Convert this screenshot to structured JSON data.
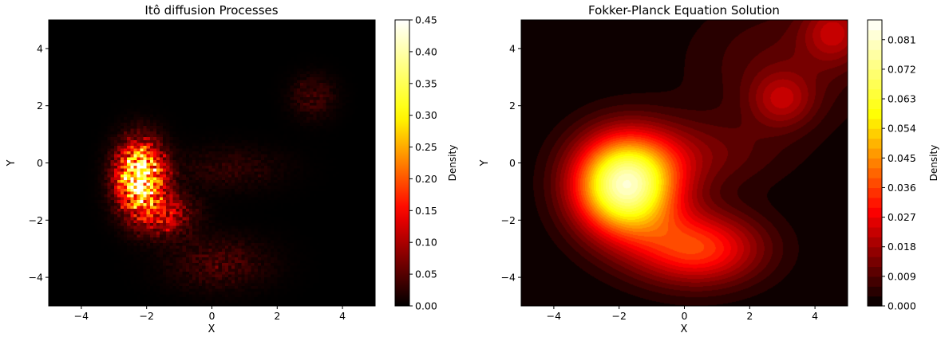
{
  "colors": {
    "colormap": "hot",
    "stops": [
      "#000000",
      "#ff0000",
      "#ffff00",
      "#ffffff"
    ]
  },
  "chart_data": [
    {
      "type": "heatmap",
      "style": "histogram2d",
      "title": "Itô diffusion Processes",
      "xlabel": "X",
      "ylabel": "Y",
      "xlim": [
        -5,
        5
      ],
      "ylim": [
        -5,
        5
      ],
      "xticks": [
        -4,
        -2,
        0,
        2,
        4
      ],
      "yticks": [
        -4,
        -2,
        0,
        2,
        4
      ],
      "xtick_labels": [
        "−4",
        "−2",
        "0",
        "2",
        "4"
      ],
      "ytick_labels": [
        "−4",
        "−2",
        "0",
        "2",
        "4"
      ],
      "colorbar": {
        "label": "Density",
        "range": [
          0,
          0.45
        ],
        "ticks": [
          0.0,
          0.05,
          0.1,
          0.15,
          0.2,
          0.25,
          0.3,
          0.35,
          0.4,
          0.45
        ],
        "tick_labels": [
          "0.00",
          "0.05",
          "0.10",
          "0.15",
          "0.20",
          "0.25",
          "0.30",
          "0.35",
          "0.40",
          "0.45"
        ]
      },
      "grid": false,
      "density_components": [
        {
          "mx": -2.2,
          "my": -0.5,
          "sx": 0.45,
          "sy": 0.75,
          "peak": 0.42
        },
        {
          "mx": -1.5,
          "my": -1.8,
          "sx": 0.6,
          "sy": 0.5,
          "peak": 0.12
        },
        {
          "mx": 0.2,
          "my": -3.5,
          "sx": 1.0,
          "sy": 0.6,
          "peak": 0.04
        },
        {
          "mx": 0.5,
          "my": -0.2,
          "sx": 1.1,
          "sy": 0.5,
          "peak": 0.025
        },
        {
          "mx": 3.1,
          "my": 2.3,
          "sx": 0.45,
          "sy": 0.5,
          "peak": 0.035
        }
      ]
    },
    {
      "type": "heatmap",
      "style": "contourf",
      "title": "Fokker-Planck Equation Solution",
      "xlabel": "X",
      "ylabel": "Y",
      "xlim": [
        -5,
        5
      ],
      "ylim": [
        -5,
        5
      ],
      "xticks": [
        -4,
        -2,
        0,
        2,
        4
      ],
      "yticks": [
        -4,
        -2,
        0,
        2,
        4
      ],
      "xtick_labels": [
        "−4",
        "−2",
        "0",
        "2",
        "4"
      ],
      "ytick_labels": [
        "−4",
        "−2",
        "0",
        "2",
        "4"
      ],
      "colorbar": {
        "label": "Density",
        "range": [
          0,
          0.087
        ],
        "ticks": [
          0.0,
          0.009,
          0.018,
          0.027,
          0.036,
          0.045,
          0.054,
          0.063,
          0.072,
          0.081
        ],
        "tick_labels": [
          "0.000",
          "0.009",
          "0.018",
          "0.027",
          "0.036",
          "0.045",
          "0.054",
          "0.063",
          "0.072",
          "0.081"
        ]
      },
      "levels": 29,
      "grid": false,
      "density_components": [
        {
          "mx": -1.8,
          "my": -0.8,
          "sx": 1.1,
          "sy": 1.2,
          "peak": 0.078
        },
        {
          "mx": 0.4,
          "my": -3.0,
          "sx": 1.4,
          "sy": 0.9,
          "peak": 0.035
        },
        {
          "mx": 0.3,
          "my": 0.3,
          "sx": 1.8,
          "sy": 0.9,
          "peak": 0.012
        },
        {
          "mx": 3.0,
          "my": 2.2,
          "sx": 0.7,
          "sy": 0.7,
          "peak": 0.016
        },
        {
          "mx": 4.6,
          "my": 4.6,
          "sx": 0.7,
          "sy": 0.8,
          "peak": 0.018
        },
        {
          "mx": 3.0,
          "my": 3.5,
          "sx": 2.0,
          "sy": 1.6,
          "peak": 0.009
        }
      ]
    }
  ]
}
